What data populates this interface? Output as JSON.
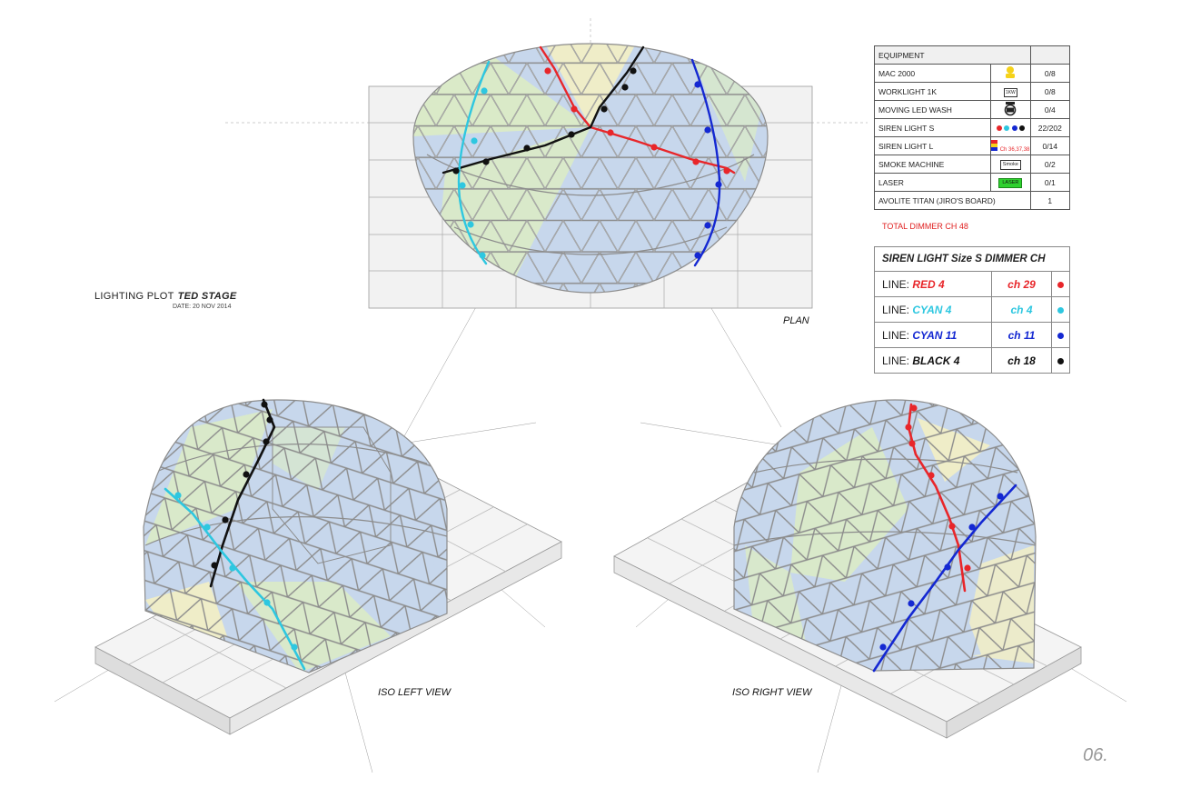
{
  "title": {
    "prefix": "LIGHTING PLOT",
    "stage": "TED STAGE",
    "date": "DATE: 20 NOV 2014"
  },
  "views": {
    "plan": "PLAN",
    "iso_left": "ISO LEFT VIEW",
    "iso_right": "ISO RIGHT VIEW"
  },
  "equipment": {
    "header": "EQUIPMENT",
    "rows": [
      {
        "name": "MAC 2000",
        "icon": "mac-2000-fixture-icon",
        "count": "0/8"
      },
      {
        "name": "WORKLIGHT 1K",
        "icon": "worklight-icon",
        "icon_text": "1KW",
        "count": "0/8"
      },
      {
        "name": "MOVING LED WASH",
        "icon": "moving-led-wash-icon",
        "count": "0/4"
      },
      {
        "name": "SIREN LIGHT S",
        "icon": "siren-dots-icon",
        "count": "22/202"
      },
      {
        "name": "SIREN LIGHT L",
        "icon": "siren-large-icon",
        "icon_text": "Ch 36,37,38",
        "count": "0/14"
      },
      {
        "name": "SMOKE MACHINE",
        "icon": "smoke-machine-icon",
        "icon_text": "Smoke",
        "count": "0/2"
      },
      {
        "name": "LASER",
        "icon": "laser-icon",
        "icon_text": "LASER",
        "count": "0/1"
      },
      {
        "name": "AVOLITE TITAN (JIRO'S BOARD)",
        "icon": "",
        "count": "1"
      }
    ],
    "total": "TOTAL DIMMER CH 48"
  },
  "siren_table": {
    "title": "SIREN LIGHT Size S DIMMER CH",
    "line_prefix": "LINE:",
    "rows": [
      {
        "line": "RED 4",
        "ch": "ch 29",
        "color": "#e8262a"
      },
      {
        "line": "CYAN 4",
        "ch": "ch 4",
        "color": "#2ec7e0"
      },
      {
        "line": "CYAN 11",
        "ch": "ch 11",
        "color": "#1428d2"
      },
      {
        "line": "BLACK 4",
        "ch": "ch 18",
        "color": "#111111"
      }
    ]
  },
  "colors": {
    "red": "#e8262a",
    "cyan": "#2ec7e0",
    "blue": "#1428d2",
    "black": "#111111",
    "panel_blue": "#c7d7ec",
    "panel_green": "#dcecc4",
    "panel_yellow": "#efedc8",
    "frame": "#8c8c8c"
  },
  "page_number": "06."
}
